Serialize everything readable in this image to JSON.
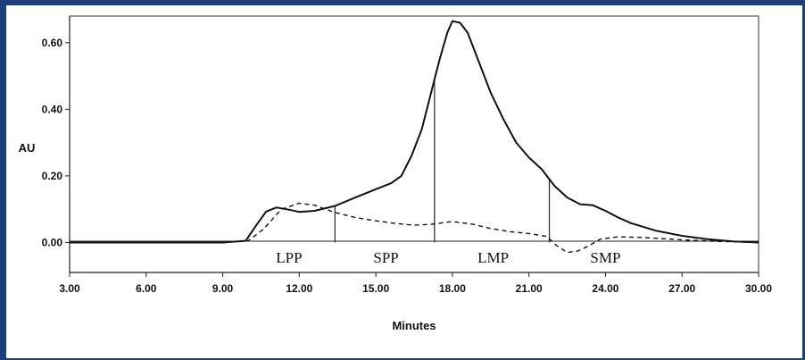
{
  "chart_data": {
    "type": "line",
    "title": "",
    "xlabel": "Minutes",
    "ylabel": "AU",
    "xlim": [
      3.0,
      30.0
    ],
    "ylim": [
      -0.09,
      0.68
    ],
    "x_ticks": [
      "3.00",
      "6.00",
      "9.00",
      "12.00",
      "15.00",
      "18.00",
      "21.00",
      "24.00",
      "27.00",
      "30.00"
    ],
    "y_ticks": [
      "0.00",
      "0.20",
      "0.40",
      "0.60"
    ],
    "x_tick_values": [
      3,
      6,
      9,
      12,
      15,
      18,
      21,
      24,
      27,
      30
    ],
    "y_tick_values": [
      0.0,
      0.2,
      0.4,
      0.6
    ],
    "grid": false,
    "legend": "none",
    "series": [
      {
        "style": "solid",
        "x": [
          3.0,
          6.0,
          9.0,
          9.9,
          10.3,
          10.7,
          11.1,
          11.5,
          12.0,
          12.6,
          13.4,
          14.2,
          15.0,
          15.6,
          16.0,
          16.4,
          16.8,
          17.2,
          17.5,
          17.8,
          18.0,
          18.3,
          18.6,
          19.0,
          19.5,
          20.0,
          20.5,
          21.0,
          21.5,
          22.0,
          22.5,
          23.0,
          23.5,
          24.0,
          24.5,
          25.0,
          26.0,
          27.0,
          28.0,
          29.0,
          30.0
        ],
        "y": [
          0.0,
          0.0,
          0.0,
          0.005,
          0.05,
          0.093,
          0.105,
          0.1,
          0.092,
          0.095,
          0.11,
          0.135,
          0.16,
          0.178,
          0.2,
          0.26,
          0.34,
          0.46,
          0.55,
          0.63,
          0.665,
          0.66,
          0.63,
          0.55,
          0.45,
          0.37,
          0.3,
          0.255,
          0.22,
          0.17,
          0.135,
          0.115,
          0.112,
          0.095,
          0.075,
          0.058,
          0.035,
          0.02,
          0.01,
          0.003,
          0.0
        ]
      },
      {
        "style": "dashed",
        "x": [
          3.0,
          9.0,
          10.0,
          10.6,
          11.3,
          12.0,
          12.6,
          13.4,
          14.2,
          15.0,
          15.8,
          16.5,
          17.2,
          18.0,
          18.8,
          19.5,
          20.3,
          21.0,
          21.7,
          22.1,
          22.5,
          22.9,
          23.3,
          23.8,
          24.5,
          25.5,
          27.0,
          28.5,
          30.0
        ],
        "y": [
          0.0,
          0.0,
          0.005,
          0.04,
          0.1,
          0.118,
          0.112,
          0.09,
          0.075,
          0.065,
          0.057,
          0.052,
          0.055,
          0.063,
          0.055,
          0.042,
          0.032,
          0.027,
          0.018,
          -0.01,
          -0.03,
          -0.026,
          -0.012,
          0.01,
          0.017,
          0.015,
          0.008,
          0.003,
          0.0
        ]
      }
    ],
    "dividers": [
      13.4,
      17.3,
      21.8
    ],
    "annotations": [
      {
        "text": "LPP",
        "x": 11.6
      },
      {
        "text": "SPP",
        "x": 15.4
      },
      {
        "text": "LMP",
        "x": 19.6
      },
      {
        "text": "SMP",
        "x": 24.0
      }
    ]
  }
}
